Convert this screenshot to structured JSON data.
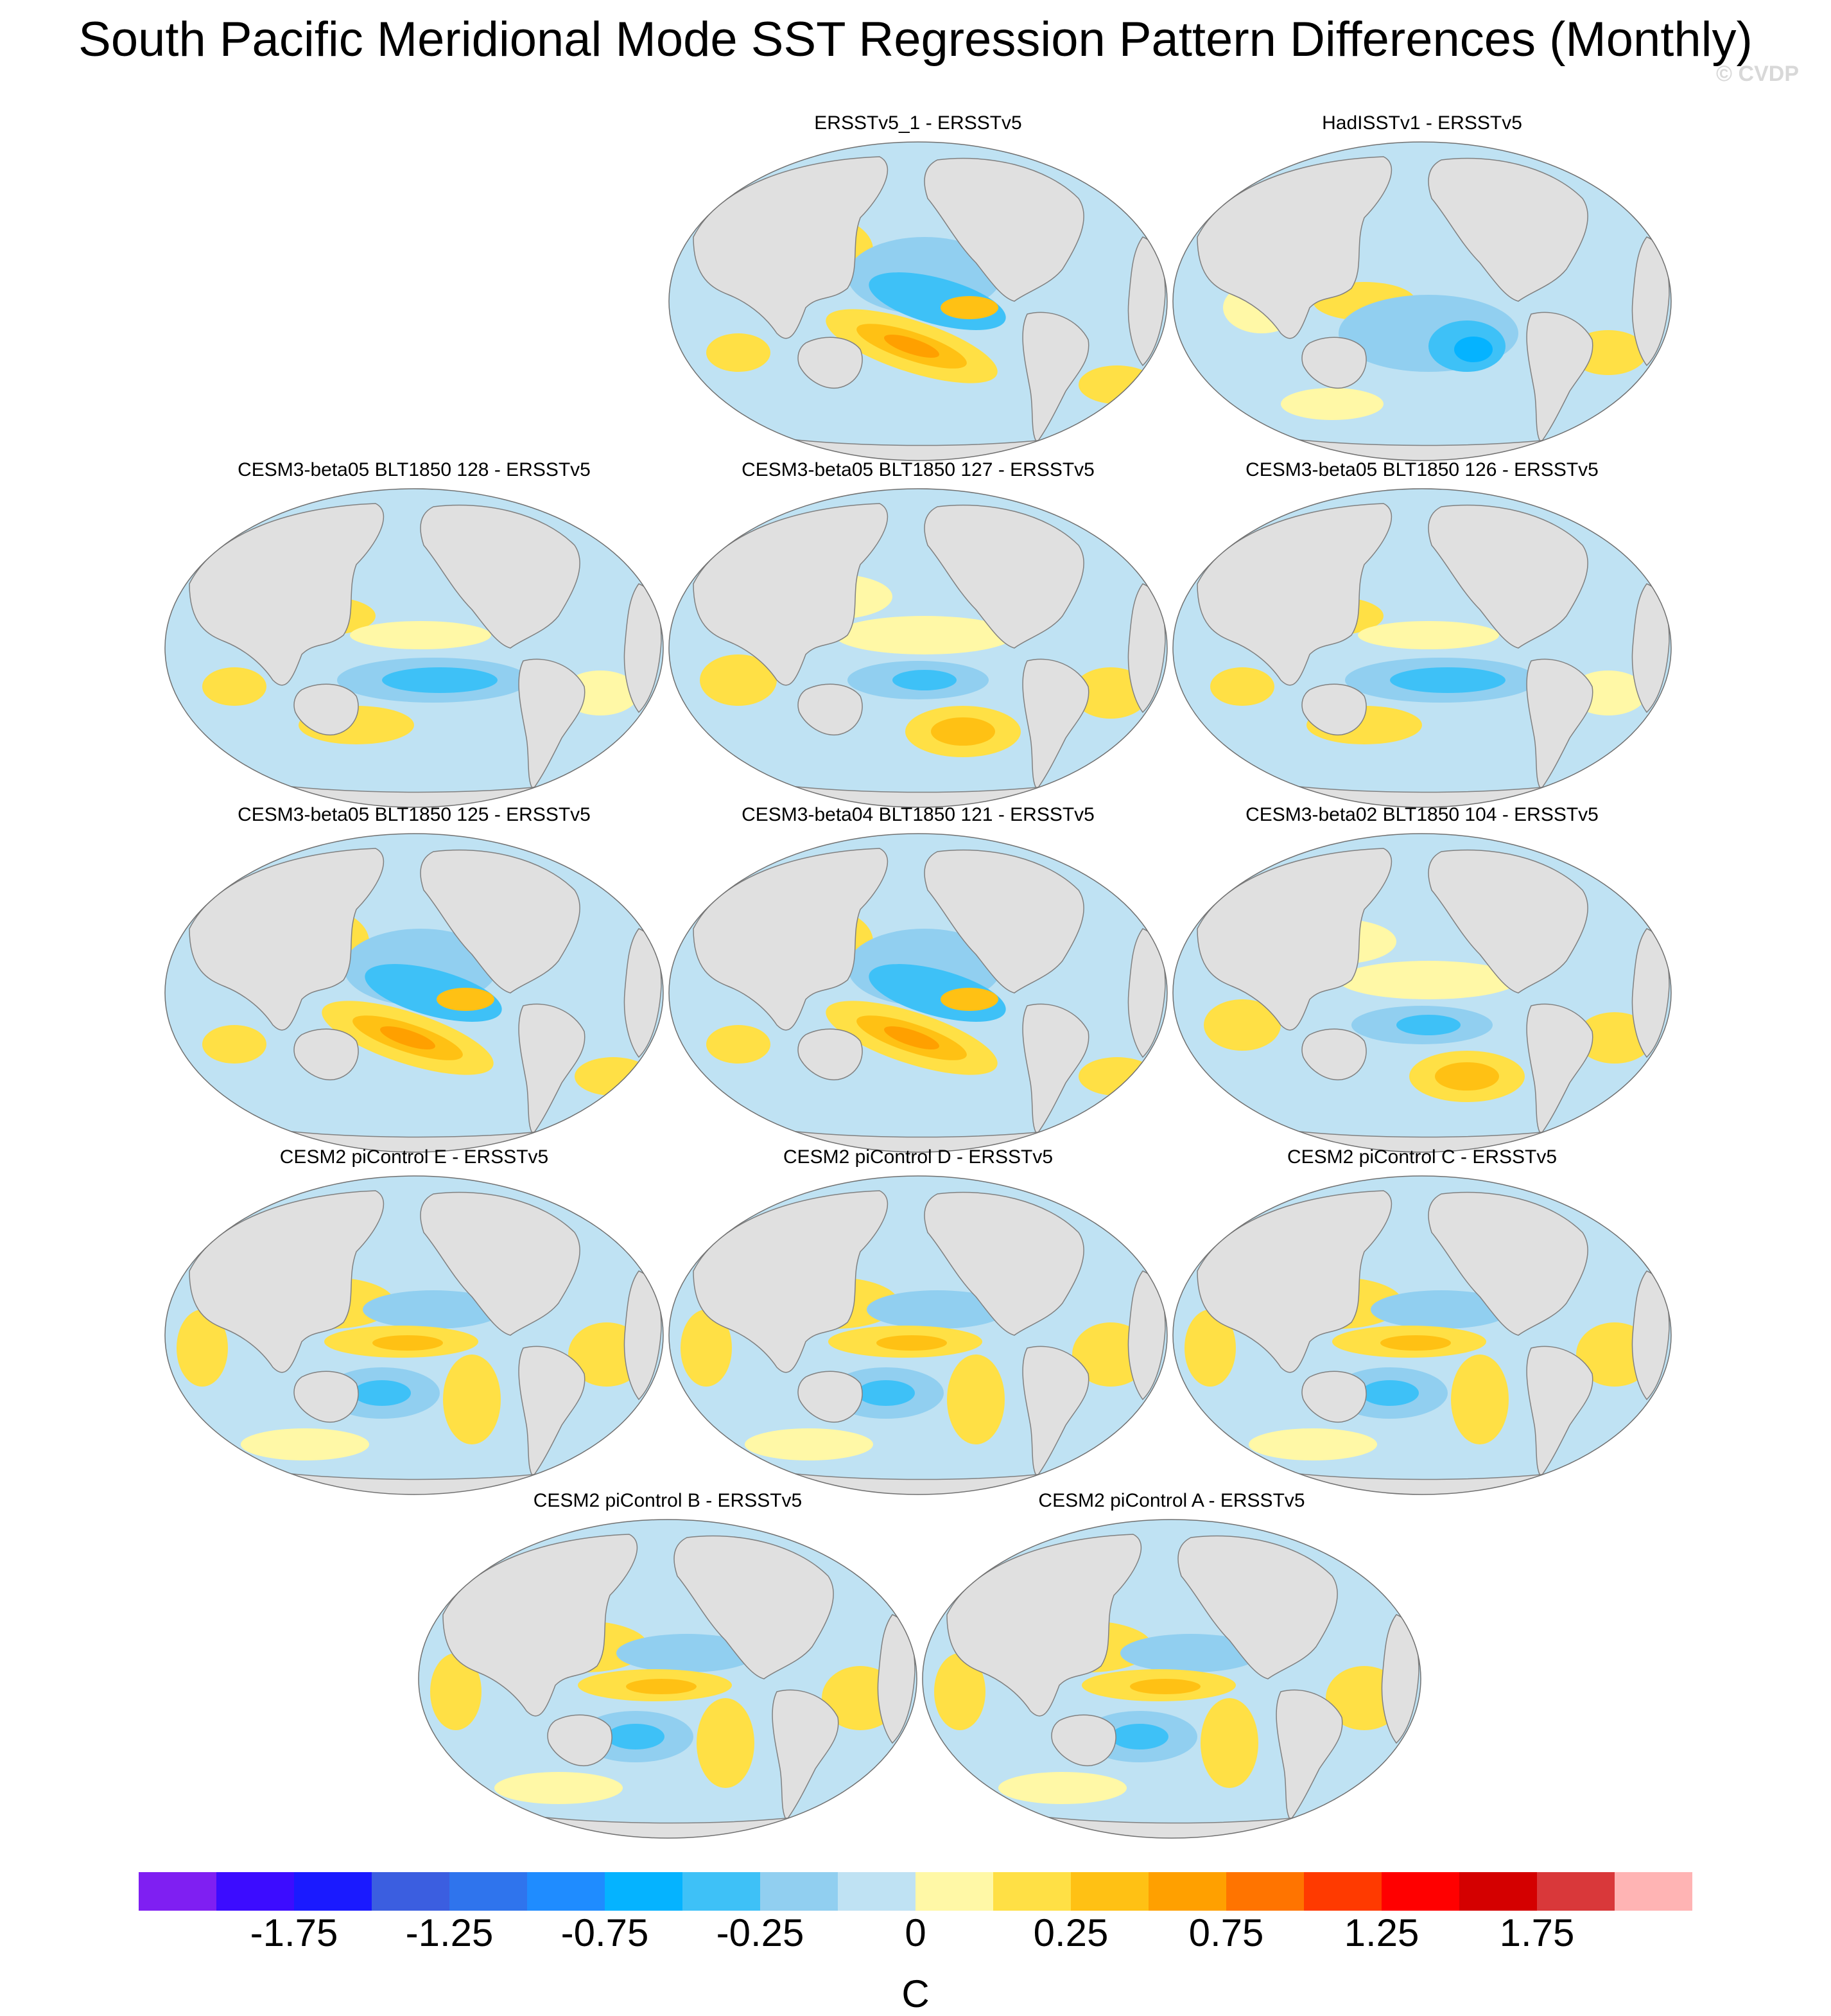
{
  "title": "South Pacific Meridional Mode SST Regression Pattern Differences (Monthly)",
  "watermark": "© CVDP",
  "colors": {
    "land": "#e0e0e0",
    "coast": "#808080",
    "ocean_neutral": "#bfe2f3"
  },
  "panels": [
    {
      "title": "ERSSTv5_1 - ERSSTv5",
      "pattern": "warm-sp-diagonal"
    },
    {
      "title": "HadISSTv1 - ERSSTv5",
      "pattern": "cool-east"
    },
    {
      "title": "CESM3-beta05 BLT1850 128 - ERSSTv5",
      "pattern": "cool-equator"
    },
    {
      "title": "CESM3-beta05 BLT1850 127 - ERSSTv5",
      "pattern": "warm-south"
    },
    {
      "title": "CESM3-beta05 BLT1850 126 - ERSSTv5",
      "pattern": "cool-equator"
    },
    {
      "title": "CESM3-beta05 BLT1850 125 - ERSSTv5",
      "pattern": "warm-sp-diagonal"
    },
    {
      "title": "CESM3-beta04 BLT1850 121 - ERSSTv5",
      "pattern": "warm-sp-diagonal"
    },
    {
      "title": "CESM3-beta02 BLT1850 104 - ERSSTv5",
      "pattern": "warm-south"
    },
    {
      "title": "CESM2 piControl E - ERSSTv5",
      "pattern": "mixed"
    },
    {
      "title": "CESM2 piControl D - ERSSTv5",
      "pattern": "mixed"
    },
    {
      "title": "CESM2 piControl C - ERSSTv5",
      "pattern": "mixed"
    },
    {
      "title": "CESM2 piControl B - ERSSTv5",
      "pattern": "mixed"
    },
    {
      "title": "CESM2 piControl A - ERSSTv5",
      "pattern": "mixed"
    }
  ],
  "colorbar": {
    "colors": [
      "#7f1ff2",
      "#3c0cff",
      "#1a1aff",
      "#3b5ee0",
      "#2f74ed",
      "#1f8cff",
      "#05b3ff",
      "#3ec1f7",
      "#91cff0",
      "#bfe2f3",
      "#fff8a6",
      "#ffe045",
      "#ffc114",
      "#ffa000",
      "#ff7400",
      "#ff3a00",
      "#ff0000",
      "#d40000",
      "#d9383a",
      "#ffb4b4"
    ],
    "tick_labels": [
      "-1.75",
      "-1.25",
      "-0.75",
      "-0.25",
      "0",
      "0.25",
      "0.75",
      "1.25",
      "1.75"
    ],
    "unit": "C"
  }
}
